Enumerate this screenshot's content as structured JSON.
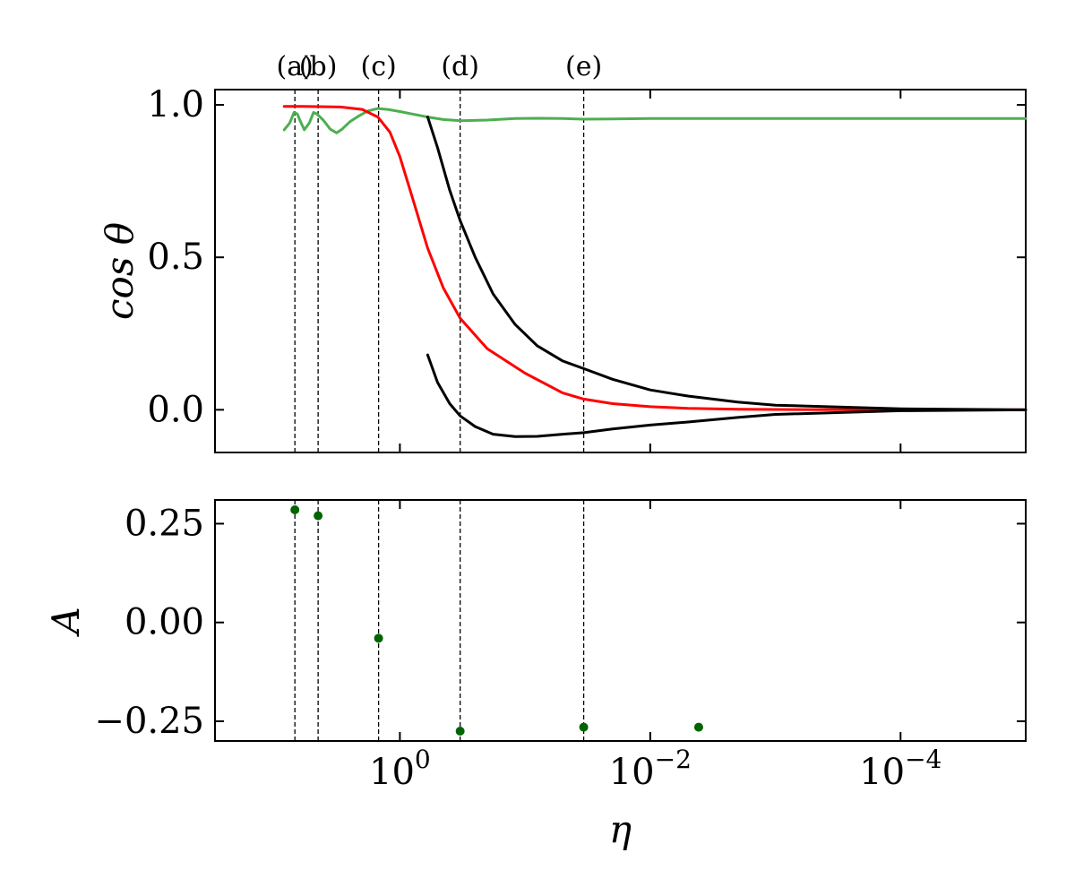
{
  "chart_data": [
    {
      "type": "line",
      "ylabel": "cos θ",
      "x_scale": "log-reversed",
      "xlim": [
        30,
        1e-05
      ],
      "ylim": [
        -0.14,
        1.05
      ],
      "yticks": [
        0.0,
        0.5,
        1.0
      ],
      "ytick_labels": [
        "0.0",
        "0.5",
        "1.0"
      ],
      "xticks": [
        1,
        0.01,
        0.0001
      ],
      "xtick_labels_shown": false,
      "annotations": [
        {
          "label": "(a)",
          "eta": 6.9
        },
        {
          "label": "(b)",
          "eta": 4.5
        },
        {
          "label": "(c)",
          "eta": 1.48
        },
        {
          "label": "(d)",
          "eta": 0.33
        },
        {
          "label": "(e)",
          "eta": 0.034
        }
      ],
      "series": [
        {
          "color": "#4caf50",
          "style": "oscillating",
          "x": [
            8.4,
            7.6,
            7.0,
            6.6,
            6.3,
            5.8,
            5.3,
            4.9,
            4.6,
            4.1,
            3.6,
            3.2,
            2.9,
            2.5,
            2.1,
            1.8,
            1.5,
            1.25,
            1.0,
            0.8,
            0.6,
            0.45,
            0.33,
            0.2,
            0.12,
            0.08,
            0.05,
            0.034,
            0.02,
            0.01,
            0.001,
            0.0001,
            1e-05
          ],
          "y": [
            0.918,
            0.94,
            0.975,
            0.97,
            0.95,
            0.918,
            0.94,
            0.975,
            0.97,
            0.95,
            0.92,
            0.908,
            0.92,
            0.945,
            0.965,
            0.98,
            0.988,
            0.985,
            0.978,
            0.97,
            0.96,
            0.952,
            0.948,
            0.95,
            0.955,
            0.956,
            0.955,
            0.953,
            0.954,
            0.955,
            0.955,
            0.955,
            0.955
          ]
        },
        {
          "color": "#ff0000",
          "x": [
            8.4,
            6,
            3,
            2,
            1.5,
            1.2,
            1.0,
            0.8,
            0.6,
            0.45,
            0.33,
            0.2,
            0.1,
            0.05,
            0.034,
            0.02,
            0.01,
            0.005,
            0.002,
            0.001,
            0.0001,
            1e-05
          ],
          "y": [
            0.995,
            0.995,
            0.993,
            0.985,
            0.96,
            0.91,
            0.83,
            0.7,
            0.53,
            0.4,
            0.3,
            0.2,
            0.12,
            0.055,
            0.035,
            0.02,
            0.01,
            0.005,
            0.002,
            0.001,
            0.0,
            0.0
          ]
        },
        {
          "color": "#000000",
          "x": [
            0.6,
            0.5,
            0.4,
            0.33,
            0.25,
            0.18,
            0.12,
            0.08,
            0.05,
            0.034,
            0.02,
            0.01,
            0.005,
            0.002,
            0.001,
            0.0001,
            1e-05
          ],
          "y": [
            0.96,
            0.86,
            0.72,
            0.62,
            0.5,
            0.38,
            0.28,
            0.21,
            0.16,
            0.135,
            0.1,
            0.065,
            0.045,
            0.025,
            0.015,
            0.003,
            0.0
          ]
        },
        {
          "color": "#000000",
          "x": [
            0.6,
            0.5,
            0.4,
            0.33,
            0.25,
            0.18,
            0.12,
            0.08,
            0.05,
            0.034,
            0.02,
            0.01,
            0.005,
            0.002,
            0.001,
            0.0001,
            1e-05
          ],
          "y": [
            0.18,
            0.09,
            0.02,
            -0.02,
            -0.055,
            -0.08,
            -0.088,
            -0.087,
            -0.08,
            -0.075,
            -0.063,
            -0.05,
            -0.04,
            -0.025,
            -0.015,
            -0.003,
            0.0
          ]
        }
      ]
    },
    {
      "type": "scatter",
      "xlabel": "η",
      "ylabel": "A",
      "x_scale": "log-reversed",
      "xlim": [
        30,
        1e-05
      ],
      "ylim": [
        -0.3,
        0.31
      ],
      "yticks": [
        -0.25,
        0.0,
        0.25
      ],
      "ytick_labels": [
        "−0.25",
        "0.00",
        "0.25"
      ],
      "xticks": [
        1,
        0.01,
        0.0001
      ],
      "xtick_labels": [
        "10^0",
        "10^−2",
        "10^−4"
      ],
      "series": [
        {
          "color": "#006400",
          "x": [
            6.9,
            4.5,
            1.48,
            0.33,
            0.034,
            0.0041
          ],
          "y": [
            0.285,
            0.27,
            -0.04,
            -0.275,
            -0.265,
            -0.265
          ]
        }
      ]
    }
  ]
}
